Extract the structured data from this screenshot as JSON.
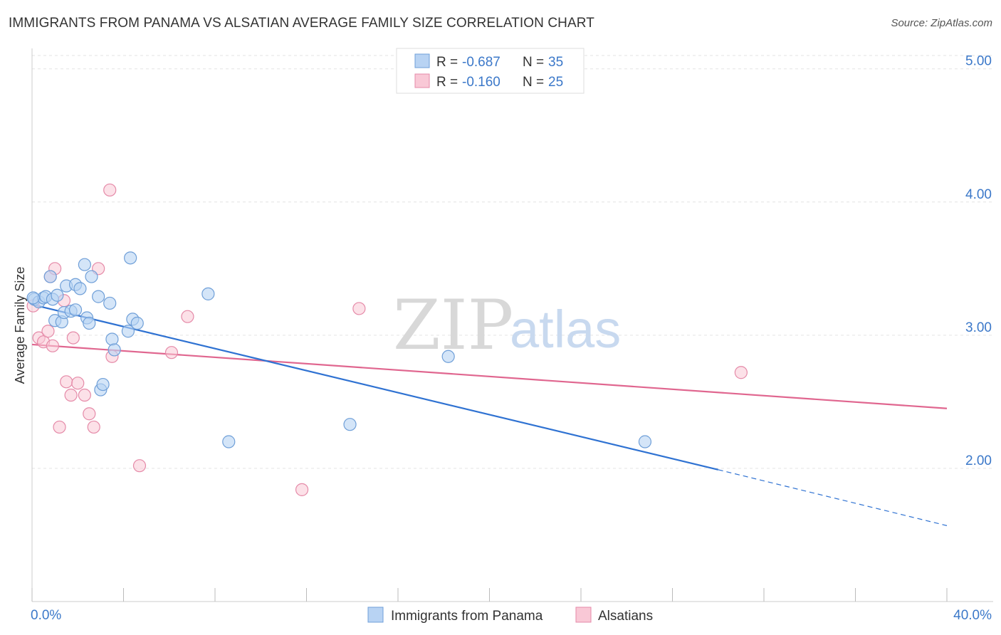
{
  "title": "IMMIGRANTS FROM PANAMA VS ALSATIAN AVERAGE FAMILY SIZE CORRELATION CHART",
  "source": "Source: ZipAtlas.com",
  "watermark": {
    "zip": "ZIP",
    "atlas": "atlas"
  },
  "chart_data": {
    "type": "scatter",
    "ylabel": "Average Family Size",
    "xlim": [
      0,
      40
    ],
    "ylim": [
      1.0,
      5.1
    ],
    "x_tick_labels": [
      "0.0%",
      "40.0%"
    ],
    "y_ticks": [
      2.0,
      3.0,
      4.0,
      5.0
    ],
    "y_tick_labels": [
      "2.00",
      "3.00",
      "4.00",
      "5.00"
    ],
    "grid": true,
    "legend_position": "top-center",
    "colors": {
      "panama_fill": "#b8d3f3",
      "panama_stroke": "#6f9fd8",
      "panama_line": "#2f72d2",
      "alsatian_fill": "#f9c8d6",
      "alsatian_stroke": "#e58aa8",
      "alsatian_line": "#e0668f"
    },
    "series": [
      {
        "name": "Immigrants from Panama",
        "R": "-0.687",
        "N": "35",
        "points": [
          [
            0.1,
            3.27
          ],
          [
            0.3,
            3.25
          ],
          [
            0.5,
            3.28
          ],
          [
            0.6,
            3.29
          ],
          [
            0.8,
            3.44
          ],
          [
            0.9,
            3.27
          ],
          [
            1.0,
            3.11
          ],
          [
            1.1,
            3.3
          ],
          [
            1.3,
            3.1
          ],
          [
            1.4,
            3.17
          ],
          [
            1.5,
            3.37
          ],
          [
            1.7,
            3.18
          ],
          [
            1.9,
            3.19
          ],
          [
            1.9,
            3.38
          ],
          [
            2.1,
            3.35
          ],
          [
            2.3,
            3.53
          ],
          [
            2.4,
            3.13
          ],
          [
            2.5,
            3.09
          ],
          [
            2.6,
            3.44
          ],
          [
            2.9,
            3.29
          ],
          [
            3.0,
            2.59
          ],
          [
            3.1,
            2.63
          ],
          [
            3.4,
            3.24
          ],
          [
            3.5,
            2.97
          ],
          [
            3.6,
            2.89
          ],
          [
            4.2,
            3.03
          ],
          [
            4.3,
            3.58
          ],
          [
            4.4,
            3.12
          ],
          [
            4.6,
            3.09
          ],
          [
            7.7,
            3.31
          ],
          [
            8.6,
            2.2
          ],
          [
            13.9,
            2.33
          ],
          [
            18.2,
            2.84
          ],
          [
            26.8,
            2.2
          ],
          [
            0.05,
            3.28
          ]
        ],
        "trend": {
          "x": [
            0.0,
            30.0
          ],
          "y": [
            3.23,
            1.99
          ]
        },
        "trend_dashed": {
          "x": [
            30.0,
            40.0
          ],
          "y": [
            1.99,
            1.57
          ]
        }
      },
      {
        "name": "Alsatians",
        "R": "-0.160",
        "N": "25",
        "points": [
          [
            0.05,
            3.22
          ],
          [
            0.3,
            2.98
          ],
          [
            0.5,
            2.95
          ],
          [
            0.7,
            3.03
          ],
          [
            0.8,
            3.44
          ],
          [
            0.9,
            2.92
          ],
          [
            1.0,
            3.5
          ],
          [
            1.2,
            2.31
          ],
          [
            1.4,
            3.26
          ],
          [
            1.5,
            2.65
          ],
          [
            1.7,
            2.55
          ],
          [
            1.8,
            2.98
          ],
          [
            2.0,
            2.64
          ],
          [
            2.3,
            2.55
          ],
          [
            2.5,
            2.41
          ],
          [
            2.7,
            2.31
          ],
          [
            2.9,
            3.5
          ],
          [
            3.4,
            4.09
          ],
          [
            3.5,
            2.84
          ],
          [
            4.7,
            2.02
          ],
          [
            6.1,
            2.87
          ],
          [
            6.8,
            3.14
          ],
          [
            11.8,
            1.84
          ],
          [
            14.3,
            3.2
          ],
          [
            31.0,
            2.72
          ]
        ],
        "trend": {
          "x": [
            0.0,
            40.0
          ],
          "y": [
            2.93,
            2.45
          ]
        }
      }
    ]
  }
}
